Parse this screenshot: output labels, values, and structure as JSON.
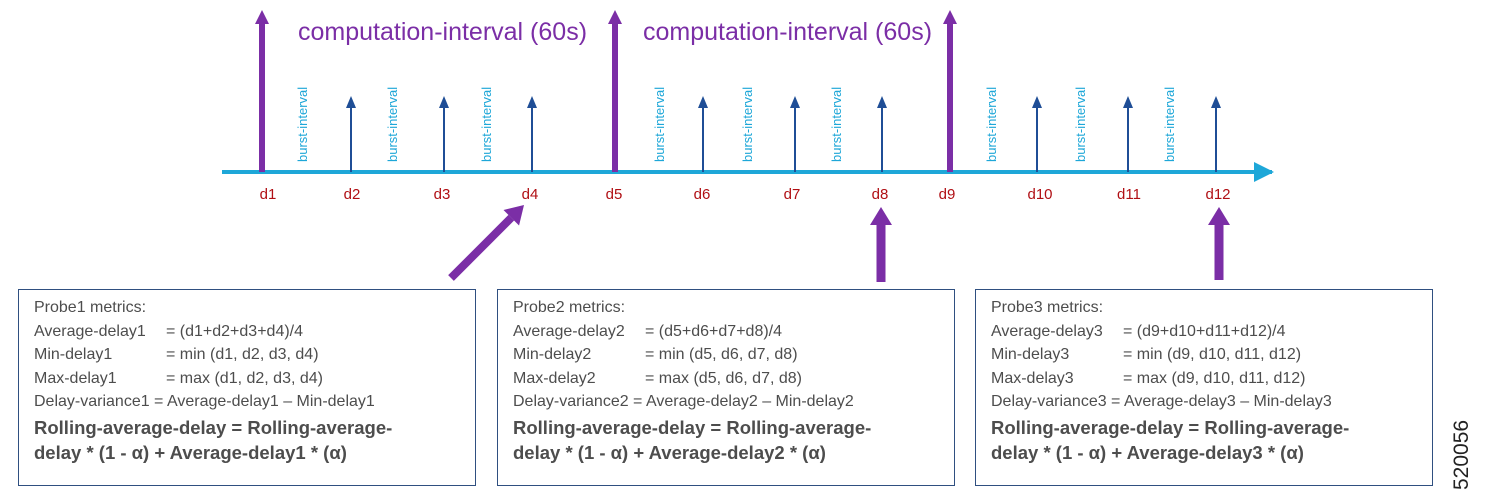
{
  "timeline": {
    "computation_label": "computation-interval (60s)",
    "burst_label": "burst-interval",
    "samples": [
      "d1",
      "d2",
      "d3",
      "d4",
      "d5",
      "d6",
      "d7",
      "d8",
      "d9",
      "d10",
      "d11",
      "d12"
    ]
  },
  "probes": [
    {
      "title": "Probe1 metrics:",
      "lines": [
        {
          "label": "Average-delay1",
          "value": "= (d1+d2+d3+d4)/4"
        },
        {
          "label": "Min-delay1",
          "value": "= min (d1, d2, d3, d4)"
        },
        {
          "label": "Max-delay1",
          "value": "= max (d1, d2, d3, d4)"
        }
      ],
      "variance": "Delay-variance1 = Average-delay1 – Min-delay1",
      "rolling_line1": "Rolling-average-delay = Rolling-average-",
      "rolling_line2": "delay * (1 - α) + Average-delay1 * (α)"
    },
    {
      "title": "Probe2 metrics:",
      "lines": [
        {
          "label": "Average-delay2",
          "value": "= (d5+d6+d7+d8)/4"
        },
        {
          "label": "Min-delay2",
          "value": "= min (d5, d6, d7, d8)"
        },
        {
          "label": "Max-delay2",
          "value": "= max (d5, d6, d7, d8)"
        }
      ],
      "variance": "Delay-variance2 = Average-delay2 – Min-delay2",
      "rolling_line1": "Rolling-average-delay = Rolling-average-",
      "rolling_line2": "delay * (1 - α) + Average-delay2 * (α)"
    },
    {
      "title": "Probe3 metrics:",
      "lines": [
        {
          "label": "Average-delay3",
          "value": "= (d9+d10+d11+d12)/4"
        },
        {
          "label": "Min-delay3",
          "value": "= min (d9, d10, d11, d12)"
        },
        {
          "label": "Max-delay3",
          "value": "= max (d9, d10, d11, d12)"
        }
      ],
      "variance": "Delay-variance3 = Average-delay3 – Min-delay3",
      "rolling_line1": "Rolling-average-delay = Rolling-average-",
      "rolling_line2": "delay * (1 - α) + Average-delay3 * (α)"
    }
  ],
  "figure_id": "520056",
  "colors": {
    "purple": "#7b2ea6",
    "blue": "#1f4e96",
    "cyan": "#1ea7d8",
    "red": "#b00f14",
    "box_border": "#2f4f80"
  }
}
